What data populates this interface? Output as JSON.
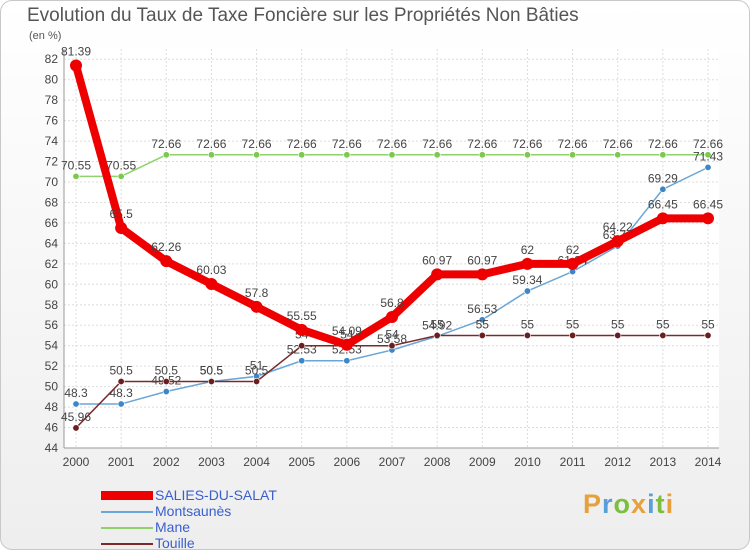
{
  "title": "Evolution du Taux de Taxe Foncière sur les Propriétés Non Bâties",
  "unit_label": "(en %)",
  "logo": {
    "text": "Proxiti",
    "letters": [
      "P",
      "r",
      "o",
      "x",
      "i",
      "t",
      "i"
    ],
    "colors": [
      "#e8a13a",
      "#5aa0d8",
      "#7cbf3f",
      "#e8a13a",
      "#5aa0d8",
      "#7cbf3f",
      "#e8a13a"
    ]
  },
  "chart_data": {
    "type": "line",
    "title": "Evolution du Taux de Taxe Foncière sur les Propriétés Non Bâties",
    "ylabel": "(en %)",
    "xlabel": "",
    "ylim": [
      44,
      83
    ],
    "yticks": [
      44,
      46,
      48,
      50,
      52,
      54,
      56,
      58,
      60,
      62,
      64,
      66,
      68,
      70,
      72,
      74,
      76,
      78,
      80,
      82
    ],
    "categories": [
      "2000",
      "2001",
      "2002",
      "2003",
      "2004",
      "2005",
      "2006",
      "2007",
      "2008",
      "2009",
      "2010",
      "2011",
      "2012",
      "2013",
      "2014"
    ],
    "grid": true,
    "series": [
      {
        "name": "Mane",
        "color": "#8fd16a",
        "dot": "#7cc94e",
        "values": [
          70.55,
          70.55,
          72.66,
          72.66,
          72.66,
          72.66,
          72.66,
          72.66,
          72.66,
          72.66,
          72.66,
          72.66,
          72.66,
          72.66,
          72.66
        ],
        "labels": [
          "70.55",
          "70.55",
          "72.66",
          "72.66",
          "72.66",
          "72.66",
          "72.66",
          "72.66",
          "72.66",
          "72.66",
          "72.66",
          "72.66",
          "72.66",
          "72.66",
          "72.66"
        ]
      },
      {
        "name": "Montsaunès",
        "color": "#6aa6d6",
        "dot": "#3f86c6",
        "values": [
          48.3,
          48.3,
          49.52,
          50.5,
          51,
          52.53,
          52.53,
          53.58,
          54.92,
          56.53,
          59.34,
          61.24,
          63.74,
          69.29,
          71.43
        ],
        "labels": [
          "48.3",
          "48.3",
          "49.52",
          "50.5",
          "51",
          "52.53",
          "52.53",
          "53.58",
          "54.92",
          "56.53",
          "59.34",
          "61.24",
          "63.74",
          "69.29",
          "71.43"
        ]
      },
      {
        "name": "Touille",
        "color": "#7a2a2a",
        "dot": "#6a1e1e",
        "values": [
          45.96,
          50.5,
          50.5,
          50.5,
          50.5,
          54,
          54,
          54,
          55,
          55,
          55,
          55,
          55,
          55,
          55
        ],
        "labels": [
          "45.96",
          "50.5",
          "50.5",
          "50.5",
          "50.5",
          "54",
          "54",
          "54",
          "55",
          "55",
          "55",
          "55",
          "55",
          "55",
          "55"
        ]
      },
      {
        "name": "SALIES-DU-SALAT",
        "color": "#ee0000",
        "dot": "#ee0000",
        "values": [
          81.39,
          65.5,
          62.26,
          60.03,
          57.8,
          55.55,
          54.09,
          56.8,
          60.97,
          60.97,
          62,
          62,
          64.22,
          66.45,
          66.45
        ],
        "labels": [
          "81.39",
          "65.5",
          "62.26",
          "60.03",
          "57.8",
          "55.55",
          "54.09",
          "56.8",
          "60.97",
          "60.97",
          "62",
          "62",
          "64.22",
          "66.45",
          "66.45"
        ]
      }
    ],
    "legend": [
      "SALIES-DU-SALAT",
      "Montsaunès",
      "Mane",
      "Touille"
    ],
    "legend_position": "bottom-left"
  }
}
